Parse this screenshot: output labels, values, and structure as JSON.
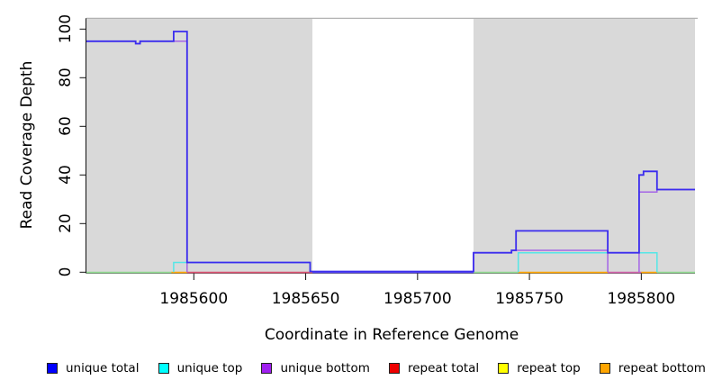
{
  "y_axis": {
    "title": "Read Coverage Depth",
    "ticks": [
      "0",
      "20",
      "40",
      "60",
      "80",
      "100"
    ]
  },
  "x_axis": {
    "title": "Coordinate in Reference Genome",
    "ticks": [
      "1985600",
      "1985650",
      "1985700",
      "1985750",
      "1985800"
    ]
  },
  "legend": [
    {
      "label": "unique total",
      "color": "#0000ff"
    },
    {
      "label": "unique top",
      "color": "#00ffff"
    },
    {
      "label": "unique bottom",
      "color": "#a020f0"
    },
    {
      "label": "repeat total",
      "color": "#ee0000"
    },
    {
      "label": "repeat top",
      "color": "#ffff00"
    },
    {
      "label": "repeat bottom",
      "color": "#ffa500"
    }
  ],
  "chart_data": {
    "type": "line",
    "subtype": "step-coverage",
    "xlabel": "Coordinate in Reference Genome",
    "ylabel": "Read Coverage Depth",
    "x_range": [
      1985552,
      1985824
    ],
    "y_range": [
      0,
      100
    ],
    "x_tick_values": [
      1985600,
      1985650,
      1985700,
      1985750,
      1985800
    ],
    "y_tick_values": [
      0,
      20,
      40,
      60,
      80,
      100
    ],
    "grid": "off",
    "legend_position": "bottom",
    "panel_color": "#d9d9d9",
    "shaded_regions": [
      [
        1985552,
        1985653
      ],
      [
        1985725,
        1985824
      ]
    ],
    "unshaded_gap": [
      1985653,
      1985725
    ],
    "series": [
      {
        "name": "repeat total",
        "color": "#ee0000",
        "draw": false,
        "segments": [
          [
            [
              1985552,
              0
            ],
            [
              1985824,
              0
            ]
          ]
        ]
      },
      {
        "name": "repeat top",
        "color": "#ffff00",
        "draw": false,
        "segments": [
          [
            [
              1985552,
              0
            ],
            [
              1985824,
              0
            ]
          ]
        ]
      },
      {
        "name": "repeat bottom",
        "color": "#ffa500",
        "draw": false,
        "segments": [
          [
            [
              1985552,
              0
            ],
            [
              1985824,
              0
            ]
          ]
        ]
      },
      {
        "name": "unique top",
        "color": "#55e6e6",
        "width": 1.5,
        "segments": [
          [
            [
              1985591,
              0
            ],
            [
              1985591,
              4
            ],
            [
              1985652,
              4
            ],
            [
              1985652,
              0
            ]
          ],
          [
            [
              1985745,
              0
            ],
            [
              1985745,
              8
            ],
            [
              1985807,
              8
            ],
            [
              1985807,
              0
            ]
          ]
        ]
      },
      {
        "name": "unique bottom",
        "color": "#a465e6",
        "width": 1.5,
        "segments": [
          [
            [
              1985552,
              95
            ],
            [
              1985574,
              95
            ],
            [
              1985574,
              94
            ],
            [
              1985576,
              94
            ],
            [
              1985576,
              95
            ],
            [
              1985597,
              95
            ],
            [
              1985597,
              0
            ]
          ],
          [
            [
              1985725,
              0
            ],
            [
              1985725,
              8
            ],
            [
              1985742,
              8
            ],
            [
              1985742,
              9
            ],
            [
              1985785,
              9
            ],
            [
              1985785,
              0
            ]
          ],
          [
            [
              1985799,
              0
            ],
            [
              1985799,
              33
            ],
            [
              1985807,
              33
            ],
            [
              1985807,
              34
            ],
            [
              1985824,
              34
            ]
          ]
        ]
      },
      {
        "name": "unique total",
        "color": "#3b2cee",
        "width": 1.8,
        "segments": [
          [
            [
              1985552,
              95
            ],
            [
              1985574,
              95
            ],
            [
              1985574,
              94
            ],
            [
              1985576,
              94
            ],
            [
              1985576,
              95
            ],
            [
              1985591,
              95
            ],
            [
              1985591,
              99
            ],
            [
              1985597,
              99
            ],
            [
              1985597,
              4
            ],
            [
              1985652,
              4
            ],
            [
              1985652,
              0.3
            ],
            [
              1985725,
              0.3
            ],
            [
              1985725,
              8
            ],
            [
              1985742,
              8
            ],
            [
              1985742,
              9
            ],
            [
              1985744,
              9
            ],
            [
              1985744,
              17
            ],
            [
              1985785,
              17
            ],
            [
              1985785,
              8
            ],
            [
              1985799,
              8
            ],
            [
              1985799,
              40
            ],
            [
              1985801,
              40
            ],
            [
              1985801,
              41.5
            ],
            [
              1985807,
              41.5
            ],
            [
              1985807,
              34
            ],
            [
              1985824,
              34
            ]
          ]
        ]
      }
    ],
    "baseline_segments": [
      {
        "from": 1985552,
        "to": 1985590,
        "color": "#8fd98f"
      },
      {
        "from": 1985590,
        "to": 1985597,
        "color": "#ffa500"
      },
      {
        "from": 1985597,
        "to": 1985653,
        "color": "#d94f6f"
      },
      {
        "from": 1985653,
        "to": 1985725,
        "color": "#5a48ee"
      },
      {
        "from": 1985725,
        "to": 1985745,
        "color": "#8fd98f"
      },
      {
        "from": 1985745,
        "to": 1985785,
        "color": "#ffa500"
      },
      {
        "from": 1985785,
        "to": 1985800,
        "color": "#cf5fa8"
      },
      {
        "from": 1985800,
        "to": 1985807,
        "color": "#ffa500"
      },
      {
        "from": 1985807,
        "to": 1985824,
        "color": "#8fd98f"
      }
    ]
  }
}
